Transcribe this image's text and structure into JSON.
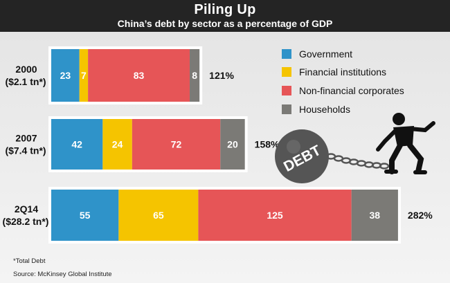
{
  "header": {
    "title": "Piling Up",
    "subtitle": "China’s debt by sector as a percentage of GDP"
  },
  "chart_data": {
    "type": "bar",
    "orientation": "horizontal",
    "stacked": true,
    "title": "Piling Up",
    "subtitle": "China’s debt by sector as a percentage of GDP",
    "categories": [
      {
        "label_line1": "2000",
        "label_line2": "($2.1 tn*)"
      },
      {
        "label_line1": "2007",
        "label_line2": "($7.4 tn*)"
      },
      {
        "label_line1": "2Q14",
        "label_line2": "($28.2 tn*)"
      }
    ],
    "series": [
      {
        "name": "Government",
        "color": "#2f93c9",
        "values": [
          23,
          42,
          55
        ]
      },
      {
        "name": "Financial institutions",
        "color": "#f5c400",
        "values": [
          7,
          24,
          65
        ]
      },
      {
        "name": "Non-financial corporates",
        "color": "#e65557",
        "values": [
          83,
          72,
          125
        ]
      },
      {
        "name": "Households",
        "color": "#7b7a76",
        "values": [
          8,
          20,
          38
        ]
      }
    ],
    "totals": [
      "121%",
      "158%",
      "282%"
    ],
    "legend_position": "top-right",
    "grid": false
  },
  "illustration": {
    "ball_text": "DEBT"
  },
  "footnotes": {
    "total_note": "*Total Debt",
    "source": "Source: McKinsey Global Institute"
  }
}
